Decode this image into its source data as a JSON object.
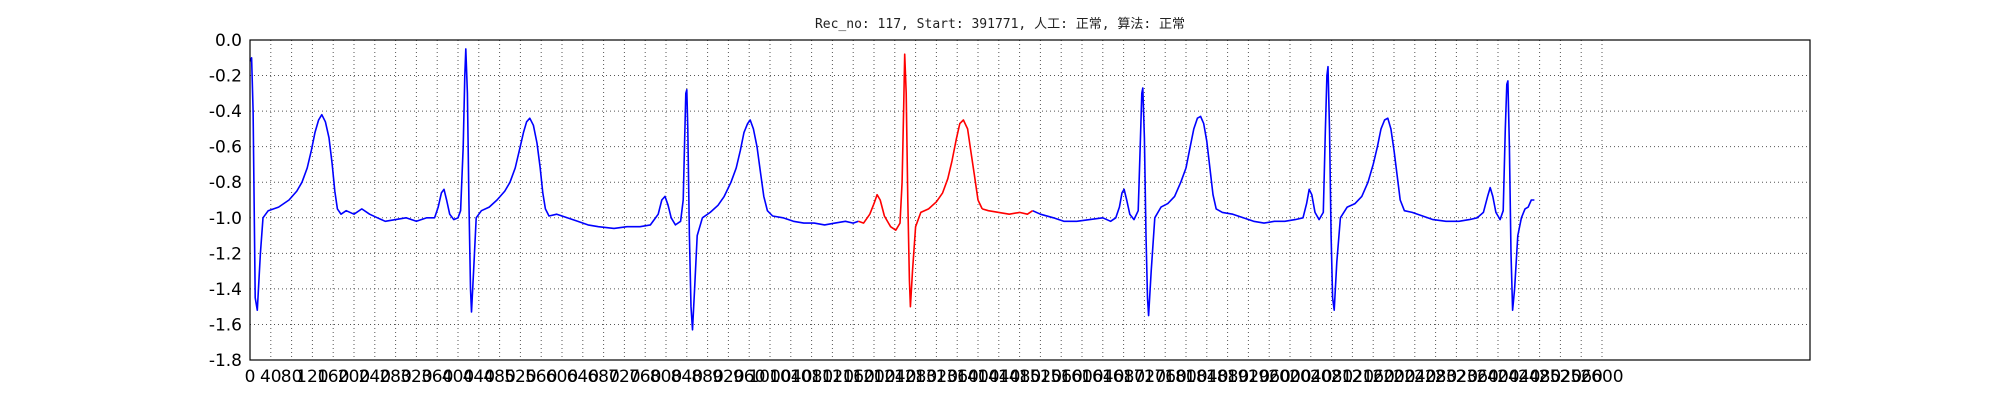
{
  "chart_data": {
    "type": "line",
    "title": "Rec_no: 117, Start: 391771, 人工: 正常, 算法: 正常",
    "xlabel": "",
    "ylabel": "",
    "xlim": [
      0,
      3000
    ],
    "ylim": [
      -1.8,
      0.0
    ],
    "grid": true,
    "y_ticks": [
      "0.0",
      "-0.2",
      "-0.4",
      "-0.6",
      "-0.8",
      "-1.0",
      "-1.2",
      "-1.4",
      "-1.6",
      "-1.8"
    ],
    "x_ticks": [
      "0",
      "40",
      "80",
      "120",
      "160",
      "200",
      "240",
      "280",
      "320",
      "360",
      "400",
      "440",
      "480",
      "520",
      "560",
      "600",
      "640",
      "680",
      "720",
      "760",
      "800",
      "840",
      "880",
      "920",
      "960",
      "1000",
      "1040",
      "1080",
      "1120",
      "1160",
      "1200",
      "1240",
      "1280",
      "1320",
      "1360",
      "1400",
      "1440",
      "1480",
      "1520",
      "1560",
      "1600",
      "1640",
      "1680",
      "1720",
      "1760",
      "1800",
      "1840",
      "1880",
      "1920",
      "1960",
      "2000",
      "2040",
      "2080",
      "2120",
      "2160",
      "2200",
      "2240",
      "2280",
      "2320",
      "2360",
      "2400",
      "2440",
      "2480",
      "2520",
      "2560",
      "2600"
    ],
    "series": [
      {
        "color": "#0000ff",
        "segments": [
          [
            [
              0,
              -0.12
            ],
            [
              3,
              -0.1
            ],
            [
              6,
              -0.4
            ],
            [
              10,
              -1.45
            ],
            [
              14,
              -1.52
            ],
            [
              20,
              -1.2
            ],
            [
              25,
              -1.0
            ],
            [
              35,
              -0.96
            ],
            [
              55,
              -0.94
            ],
            [
              75,
              -0.9
            ],
            [
              90,
              -0.85
            ],
            [
              100,
              -0.8
            ],
            [
              110,
              -0.72
            ],
            [
              118,
              -0.62
            ],
            [
              125,
              -0.52
            ],
            [
              132,
              -0.45
            ],
            [
              138,
              -0.42
            ],
            [
              145,
              -0.46
            ],
            [
              152,
              -0.55
            ],
            [
              158,
              -0.7
            ],
            [
              163,
              -0.85
            ],
            [
              168,
              -0.95
            ],
            [
              175,
              -0.98
            ],
            [
              185,
              -0.96
            ],
            [
              200,
              -0.98
            ],
            [
              215,
              -0.95
            ],
            [
              230,
              -0.98
            ],
            [
              245,
              -1.0
            ],
            [
              260,
              -1.02
            ],
            [
              280,
              -1.01
            ],
            [
              300,
              -1.0
            ],
            [
              320,
              -1.02
            ],
            [
              340,
              -1.0
            ],
            [
              355,
              -1.0
            ],
            [
              362,
              -0.94
            ],
            [
              368,
              -0.86
            ],
            [
              373,
              -0.84
            ],
            [
              378,
              -0.9
            ],
            [
              384,
              -0.98
            ],
            [
              392,
              -1.01
            ],
            [
              400,
              -1.0
            ],
            [
              405,
              -0.96
            ],
            [
              410,
              -0.6
            ],
            [
              413,
              -0.2
            ],
            [
              415,
              -0.05
            ],
            [
              418,
              -0.3
            ],
            [
              421,
              -0.9
            ],
            [
              424,
              -1.4
            ],
            [
              426,
              -1.53
            ],
            [
              430,
              -1.3
            ],
            [
              435,
              -1.0
            ],
            [
              445,
              -0.96
            ],
            [
              460,
              -0.94
            ],
            [
              475,
              -0.9
            ],
            [
              490,
              -0.85
            ],
            [
              500,
              -0.8
            ],
            [
              510,
              -0.72
            ],
            [
              518,
              -0.62
            ],
            [
              526,
              -0.52
            ],
            [
              532,
              -0.46
            ],
            [
              538,
              -0.44
            ],
            [
              545,
              -0.48
            ],
            [
              552,
              -0.58
            ],
            [
              558,
              -0.72
            ],
            [
              563,
              -0.86
            ],
            [
              568,
              -0.95
            ],
            [
              575,
              -0.99
            ],
            [
              590,
              -0.98
            ],
            [
              610,
              -1.0
            ],
            [
              630,
              -1.02
            ],
            [
              650,
              -1.04
            ],
            [
              670,
              -1.05
            ],
            [
              700,
              -1.06
            ],
            [
              725,
              -1.05
            ],
            [
              750,
              -1.05
            ],
            [
              770,
              -1.04
            ],
            [
              785,
              -0.98
            ],
            [
              792,
              -0.9
            ],
            [
              798,
              -0.88
            ],
            [
              804,
              -0.93
            ],
            [
              810,
              -1.0
            ],
            [
              818,
              -1.04
            ],
            [
              828,
              -1.02
            ],
            [
              833,
              -0.9
            ],
            [
              836,
              -0.55
            ],
            [
              838,
              -0.3
            ],
            [
              840,
              -0.28
            ],
            [
              842,
              -0.5
            ],
            [
              845,
              -1.1
            ],
            [
              848,
              -1.5
            ],
            [
              851,
              -1.63
            ],
            [
              855,
              -1.4
            ],
            [
              860,
              -1.1
            ],
            [
              870,
              -1.0
            ],
            [
              885,
              -0.97
            ],
            [
              900,
              -0.93
            ],
            [
              912,
              -0.88
            ],
            [
              925,
              -0.8
            ],
            [
              935,
              -0.72
            ],
            [
              943,
              -0.62
            ],
            [
              950,
              -0.52
            ],
            [
              957,
              -0.47
            ],
            [
              962,
              -0.45
            ],
            [
              968,
              -0.5
            ],
            [
              975,
              -0.6
            ],
            [
              982,
              -0.75
            ],
            [
              988,
              -0.88
            ],
            [
              995,
              -0.96
            ],
            [
              1005,
              -0.99
            ],
            [
              1025,
              -1.0
            ],
            [
              1045,
              -1.02
            ],
            [
              1065,
              -1.03
            ],
            [
              1085,
              -1.03
            ],
            [
              1105,
              -1.04
            ],
            [
              1125,
              -1.03
            ],
            [
              1145,
              -1.02
            ],
            [
              1160,
              -1.03
            ],
            [
              1170,
              -1.02
            ]
          ],
          [
            [
              1505,
              -0.96
            ],
            [
              1520,
              -0.98
            ],
            [
              1545,
              -1.0
            ],
            [
              1565,
              -1.02
            ],
            [
              1590,
              -1.02
            ],
            [
              1615,
              -1.01
            ],
            [
              1640,
              -1.0
            ],
            [
              1655,
              -1.02
            ],
            [
              1665,
              -1.0
            ],
            [
              1672,
              -0.94
            ],
            [
              1677,
              -0.86
            ],
            [
              1681,
              -0.84
            ],
            [
              1686,
              -0.9
            ],
            [
              1692,
              -0.98
            ],
            [
              1700,
              -1.01
            ],
            [
              1708,
              -0.96
            ],
            [
              1712,
              -0.6
            ],
            [
              1715,
              -0.3
            ],
            [
              1717,
              -0.27
            ],
            [
              1720,
              -0.55
            ],
            [
              1723,
              -1.1
            ],
            [
              1726,
              -1.45
            ],
            [
              1728,
              -1.55
            ],
            [
              1733,
              -1.3
            ],
            [
              1740,
              -1.0
            ],
            [
              1752,
              -0.94
            ],
            [
              1765,
              -0.92
            ],
            [
              1778,
              -0.88
            ],
            [
              1790,
              -0.8
            ],
            [
              1800,
              -0.72
            ],
            [
              1808,
              -0.6
            ],
            [
              1815,
              -0.5
            ],
            [
              1822,
              -0.44
            ],
            [
              1828,
              -0.43
            ],
            [
              1834,
              -0.47
            ],
            [
              1840,
              -0.57
            ],
            [
              1846,
              -0.72
            ],
            [
              1852,
              -0.87
            ],
            [
              1858,
              -0.95
            ],
            [
              1870,
              -0.97
            ],
            [
              1890,
              -0.98
            ],
            [
              1910,
              -1.0
            ],
            [
              1930,
              -1.02
            ],
            [
              1950,
              -1.03
            ],
            [
              1970,
              -1.02
            ],
            [
              1990,
              -1.02
            ],
            [
              2010,
              -1.01
            ],
            [
              2025,
              -1.0
            ],
            [
              2032,
              -0.92
            ],
            [
              2037,
              -0.84
            ],
            [
              2042,
              -0.87
            ],
            [
              2048,
              -0.97
            ],
            [
              2056,
              -1.01
            ],
            [
              2064,
              -0.97
            ],
            [
              2068,
              -0.5
            ],
            [
              2071,
              -0.2
            ],
            [
              2073,
              -0.15
            ],
            [
              2076,
              -0.5
            ],
            [
              2079,
              -1.1
            ],
            [
              2082,
              -1.45
            ],
            [
              2085,
              -1.52
            ],
            [
              2090,
              -1.25
            ],
            [
              2097,
              -1.0
            ],
            [
              2110,
              -0.94
            ],
            [
              2125,
              -0.92
            ],
            [
              2138,
              -0.88
            ],
            [
              2150,
              -0.8
            ],
            [
              2160,
              -0.7
            ],
            [
              2168,
              -0.6
            ],
            [
              2175,
              -0.5
            ],
            [
              2182,
              -0.45
            ],
            [
              2188,
              -0.44
            ],
            [
              2194,
              -0.5
            ],
            [
              2200,
              -0.62
            ],
            [
              2206,
              -0.76
            ],
            [
              2212,
              -0.9
            ],
            [
              2220,
              -0.96
            ],
            [
              2235,
              -0.97
            ],
            [
              2255,
              -0.99
            ],
            [
              2275,
              -1.01
            ],
            [
              2300,
              -1.02
            ],
            [
              2325,
              -1.02
            ],
            [
              2345,
              -1.01
            ],
            [
              2360,
              -1.0
            ],
            [
              2372,
              -0.97
            ],
            [
              2380,
              -0.88
            ],
            [
              2385,
              -0.83
            ],
            [
              2390,
              -0.88
            ],
            [
              2396,
              -0.97
            ],
            [
              2404,
              -1.01
            ],
            [
              2410,
              -0.96
            ],
            [
              2414,
              -0.5
            ],
            [
              2417,
              -0.25
            ],
            [
              2419,
              -0.23
            ],
            [
              2422,
              -0.6
            ],
            [
              2425,
              -1.2
            ],
            [
              2428,
              -1.52
            ],
            [
              2432,
              -1.4
            ],
            [
              2438,
              -1.1
            ],
            [
              2445,
              -1.0
            ],
            [
              2452,
              -0.95
            ],
            [
              2458,
              -0.94
            ],
            [
              2464,
              -0.9
            ],
            [
              2470,
              -0.9
            ]
          ]
        ]
      },
      {
        "color": "#ff0000",
        "segments": [
          [
            [
              1170,
              -1.02
            ],
            [
              1180,
              -1.03
            ],
            [
              1192,
              -0.98
            ],
            [
              1200,
              -0.92
            ],
            [
              1206,
              -0.87
            ],
            [
              1212,
              -0.9
            ],
            [
              1220,
              -0.99
            ],
            [
              1232,
              -1.05
            ],
            [
              1242,
              -1.07
            ],
            [
              1250,
              -1.03
            ],
            [
              1254,
              -0.8
            ],
            [
              1257,
              -0.4
            ],
            [
              1259,
              -0.08
            ],
            [
              1262,
              -0.3
            ],
            [
              1265,
              -0.9
            ],
            [
              1268,
              -1.35
            ],
            [
              1270,
              -1.5
            ],
            [
              1274,
              -1.3
            ],
            [
              1280,
              -1.05
            ],
            [
              1290,
              -0.97
            ],
            [
              1305,
              -0.95
            ],
            [
              1320,
              -0.91
            ],
            [
              1332,
              -0.86
            ],
            [
              1342,
              -0.78
            ],
            [
              1350,
              -0.68
            ],
            [
              1358,
              -0.56
            ],
            [
              1365,
              -0.47
            ],
            [
              1372,
              -0.45
            ],
            [
              1380,
              -0.5
            ],
            [
              1386,
              -0.62
            ],
            [
              1393,
              -0.76
            ],
            [
              1400,
              -0.9
            ],
            [
              1408,
              -0.95
            ]
          ],
          [
            [
              1408,
              -0.95
            ],
            [
              1420,
              -0.96
            ],
            [
              1440,
              -0.97
            ],
            [
              1460,
              -0.98
            ],
            [
              1480,
              -0.97
            ],
            [
              1495,
              -0.98
            ],
            [
              1505,
              -0.96
            ]
          ]
        ]
      }
    ]
  }
}
